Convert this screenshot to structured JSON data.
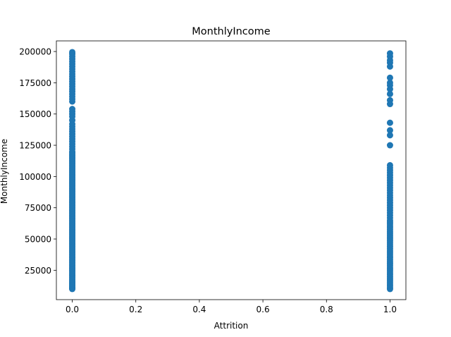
{
  "chart_data": {
    "type": "scatter",
    "title": "MonthlyIncome",
    "xlabel": "Attrition",
    "ylabel": "MonthlyIncome",
    "xlim": [
      -0.05,
      1.05
    ],
    "ylim": [
      1500,
      208500
    ],
    "xticks": [
      0.0,
      0.2,
      0.4,
      0.6,
      0.8,
      1.0
    ],
    "xtick_labels": [
      "0.0",
      "0.2",
      "0.4",
      "0.6",
      "0.8",
      "1.0"
    ],
    "yticks": [
      25000,
      50000,
      75000,
      100000,
      125000,
      150000,
      175000,
      200000
    ],
    "ytick_labels": [
      "25000",
      "50000",
      "75000",
      "100000",
      "125000",
      "150000",
      "175000",
      "200000"
    ],
    "grid": false,
    "marker_color": "#1f77b4",
    "series": [
      {
        "x": 0,
        "y": [
          10000,
          10300,
          10600,
          11000,
          11500,
          12000,
          12600,
          13200,
          13900,
          14500,
          15200,
          16000,
          16800,
          17600,
          18500,
          19400,
          20300,
          21200,
          22100,
          23000,
          24000,
          25000,
          26000,
          27000,
          28000,
          29000,
          30000,
          31000,
          32000,
          33000,
          34000,
          35000,
          36000,
          37000,
          38000,
          39000,
          40000,
          41000,
          42000,
          43000,
          44000,
          45000,
          46000,
          47000,
          48000,
          49000,
          50000,
          51000,
          52000,
          53000,
          54000,
          55000,
          56000,
          57000,
          58000,
          59000,
          60000,
          61000,
          62000,
          63000,
          64000,
          65000,
          66000,
          67000,
          68000,
          69000,
          70000,
          71000,
          72000,
          73000,
          74000,
          75000,
          76000,
          77000,
          78000,
          79000,
          80000,
          81000,
          82000,
          83000,
          84000,
          85000,
          86000,
          87000,
          88000,
          89000,
          90000,
          91000,
          92000,
          93000,
          94000,
          95000,
          96000,
          97000,
          98000,
          99000,
          100000,
          101000,
          102000,
          103000,
          104000,
          105000,
          106000,
          107000,
          108000,
          109000,
          110000,
          111000,
          112000,
          113000,
          114000,
          115000,
          116000,
          117000,
          118000,
          119000,
          120000,
          122000,
          124000,
          126000,
          128000,
          130000,
          132000,
          134000,
          136000,
          138000,
          140000,
          142000,
          145000,
          148000,
          150000,
          152000,
          154000,
          160000,
          162000,
          164000,
          166000,
          168000,
          170000,
          172000,
          174000,
          176000,
          178000,
          180000,
          182000,
          184000,
          186000,
          188000,
          190000,
          192000,
          194000,
          196000,
          198000,
          199500
        ]
      },
      {
        "x": 1,
        "y": [
          10000,
          11000,
          12500,
          14000,
          15500,
          17000,
          18500,
          20000,
          21500,
          23000,
          24500,
          26000,
          27500,
          29000,
          30500,
          32000,
          33500,
          35000,
          36500,
          38000,
          39500,
          41000,
          42500,
          44000,
          45500,
          47000,
          48500,
          50000,
          51500,
          53000,
          54500,
          56000,
          57500,
          59000,
          60500,
          62000,
          63500,
          65000,
          67000,
          69000,
          71000,
          73000,
          75000,
          77000,
          79000,
          81000,
          83000,
          85000,
          87000,
          89000,
          91000,
          93000,
          95000,
          97000,
          99000,
          101000,
          103000,
          105000,
          107000,
          109000,
          125000,
          133000,
          137000,
          143000,
          158000,
          161000,
          166000,
          170000,
          173000,
          175000,
          179000,
          188000,
          191000,
          193000,
          196000,
          198500
        ]
      }
    ]
  }
}
